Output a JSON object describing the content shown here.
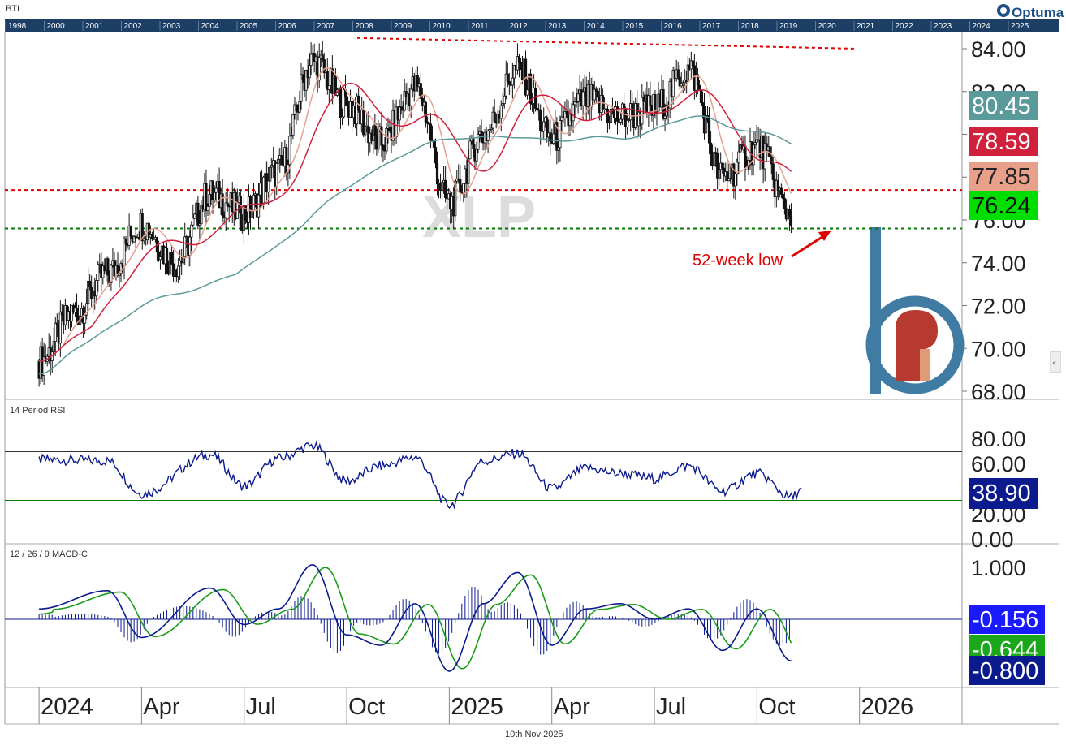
{
  "header": {
    "symbol": "BTI",
    "brand": "Optuma",
    "overview_years": [
      "1998",
      "2000",
      "2001",
      "2002",
      "2003",
      "2004",
      "2005",
      "2006",
      "2007",
      "2008",
      "2009",
      "2010",
      "2011",
      "2012",
      "2013",
      "2014",
      "2015",
      "2016",
      "2017",
      "2018",
      "2019",
      "2020",
      "2021",
      "2022",
      "2023",
      "2024",
      "2025"
    ]
  },
  "footer": {
    "date": "10th Nov 2025"
  },
  "watermark": "XLP",
  "annotation": {
    "text": "52-week low"
  },
  "colors": {
    "price": "#111111",
    "ma_short": "#e8a090",
    "ma_mid": "#d0203c",
    "ma_long": "#5b9a9a",
    "resistance": "#e00000",
    "support": "#007a00",
    "rsi": "#0b1a8c",
    "macd": "#0b1a8c",
    "signal": "#1a9c1a",
    "header_bg": "#1d3f66"
  },
  "chart_data": [
    {
      "type": "candlestick",
      "panel": "price",
      "title": "",
      "ylim": [
        68,
        85
      ],
      "yticks": [
        "84.00",
        "82.00",
        "80.00",
        "78.00",
        "76.00",
        "74.00",
        "72.00",
        "70.00",
        "68.00"
      ],
      "x_labels": [
        "2024",
        "Apr",
        "Jul",
        "Oct",
        "2025",
        "Apr",
        "Jul",
        "Oct",
        "2026"
      ],
      "x_label_dates": [
        "2024-01",
        "2024-04",
        "2024-07",
        "2024-10",
        "2025-01",
        "2025-04",
        "2025-07",
        "2025-10",
        "2026-01"
      ],
      "close_series": [
        [
          "2024-01",
          69.4
        ],
        [
          "2024-02",
          71.6
        ],
        [
          "2024-03",
          73.5
        ],
        [
          "2024-04",
          75.8
        ],
        [
          "2024-05",
          74.0
        ],
        [
          "2024-06",
          77.2
        ],
        [
          "2024-07",
          76.3
        ],
        [
          "2024-08",
          78.3
        ],
        [
          "2024-09",
          83.4
        ],
        [
          "2024-10",
          81.4
        ],
        [
          "2024-11",
          79.6
        ],
        [
          "2024-12",
          82.2
        ],
        [
          "2025-01",
          76.8
        ],
        [
          "2025-02",
          80.0
        ],
        [
          "2025-03",
          83.0
        ],
        [
          "2025-04",
          79.8
        ],
        [
          "2025-05",
          81.6
        ],
        [
          "2025-06",
          80.8
        ],
        [
          "2025-07",
          81.2
        ],
        [
          "2025-08",
          83.0
        ],
        [
          "2025-09",
          78.0
        ],
        [
          "2025-10",
          79.4
        ],
        [
          "2025-11",
          76.3
        ]
      ],
      "overlays": [
        {
          "label": "80.45",
          "value": 80.45
        },
        {
          "label": "78.59",
          "value": 78.59
        },
        {
          "label": "77.85",
          "value": 77.85
        },
        {
          "label": "76.24",
          "value": 76.24
        }
      ],
      "levels": {
        "resistance": 77.4,
        "support": 75.6,
        "trendline_start": 84.5,
        "trendline_end": 84.0
      }
    },
    {
      "type": "line",
      "panel": "rsi",
      "title": "14 Period RSI",
      "ylim": [
        0,
        100
      ],
      "yticks": [
        "80.00",
        "60.00",
        "40.00",
        "20.00",
        "0.00"
      ],
      "bands": [
        70,
        30
      ],
      "last": "38.90",
      "series": [
        [
          "2024-01",
          63
        ],
        [
          "2024-03",
          62
        ],
        [
          "2024-04",
          36
        ],
        [
          "2024-06",
          67
        ],
        [
          "2024-07",
          42
        ],
        [
          "2024-08",
          64
        ],
        [
          "2024-09",
          74
        ],
        [
          "2024-10",
          46
        ],
        [
          "2024-11",
          58
        ],
        [
          "2024-12",
          65
        ],
        [
          "2025-01",
          27
        ],
        [
          "2025-02",
          62
        ],
        [
          "2025-03",
          68
        ],
        [
          "2025-04",
          40
        ],
        [
          "2025-05",
          56
        ],
        [
          "2025-06",
          52
        ],
        [
          "2025-07",
          48
        ],
        [
          "2025-08",
          58
        ],
        [
          "2025-09",
          38
        ],
        [
          "2025-10",
          52
        ],
        [
          "2025-11",
          33
        ],
        [
          "2025-11-10",
          38.9
        ]
      ]
    },
    {
      "type": "line",
      "panel": "macd",
      "title": "12 / 26 / 9 MACD-C",
      "ylim": [
        -1.3,
        1.3
      ],
      "yticks": [
        "1.000"
      ],
      "labels": [
        "-0.156",
        "-0.644",
        "-0.800"
      ],
      "series": [
        {
          "name": "MACD",
          "points": [
            [
              "2024-01",
              0.2
            ],
            [
              "2024-03",
              0.55
            ],
            [
              "2024-04",
              -0.35
            ],
            [
              "2024-06",
              0.6
            ],
            [
              "2024-07",
              -0.1
            ],
            [
              "2024-08",
              0.2
            ],
            [
              "2024-09",
              1.05
            ],
            [
              "2024-10",
              -0.3
            ],
            [
              "2024-11",
              -0.5
            ],
            [
              "2024-12",
              0.3
            ],
            [
              "2025-01",
              -1.0
            ],
            [
              "2025-02",
              0.3
            ],
            [
              "2025-03",
              0.9
            ],
            [
              "2025-04",
              -0.5
            ],
            [
              "2025-05",
              0.2
            ],
            [
              "2025-06",
              0.3
            ],
            [
              "2025-07",
              0.0
            ],
            [
              "2025-08",
              0.2
            ],
            [
              "2025-09",
              -0.6
            ],
            [
              "2025-10",
              0.2
            ],
            [
              "2025-11",
              -0.8
            ]
          ]
        },
        {
          "name": "Signal",
          "points": [
            [
              "2024-01",
              0.1
            ],
            [
              "2024-03",
              0.5
            ],
            [
              "2024-04",
              -0.2
            ],
            [
              "2024-06",
              0.5
            ],
            [
              "2024-07",
              0.0
            ],
            [
              "2024-08",
              0.15
            ],
            [
              "2024-09",
              0.95
            ],
            [
              "2024-10",
              -0.1
            ],
            [
              "2024-11",
              -0.4
            ],
            [
              "2024-12",
              0.2
            ],
            [
              "2025-01",
              -0.8
            ],
            [
              "2025-02",
              0.1
            ],
            [
              "2025-03",
              0.8
            ],
            [
              "2025-04",
              -0.3
            ],
            [
              "2025-05",
              0.15
            ],
            [
              "2025-06",
              0.25
            ],
            [
              "2025-07",
              0.0
            ],
            [
              "2025-08",
              0.15
            ],
            [
              "2025-09",
              -0.4
            ],
            [
              "2025-10",
              0.1
            ],
            [
              "2025-11",
              -0.6
            ]
          ]
        }
      ]
    }
  ]
}
